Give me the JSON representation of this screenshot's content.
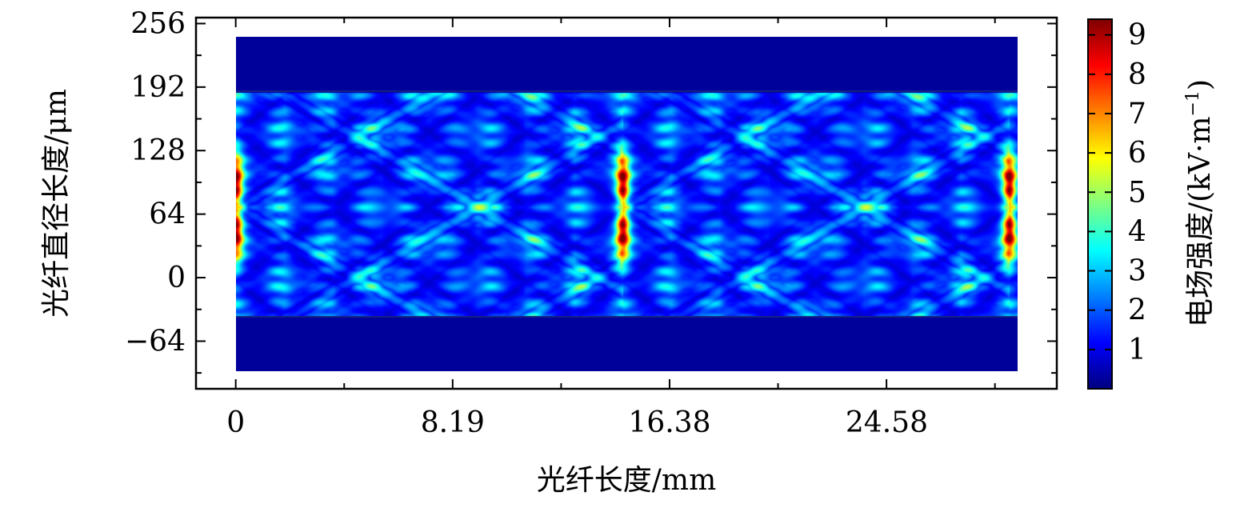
{
  "chart_data": {
    "type": "heatmap",
    "title": "",
    "xlabel": "光纤长度/mm",
    "ylabel": "光纤直径长度/μm",
    "x_ticks": [
      "0",
      "8.19",
      "16.38",
      "24.58"
    ],
    "x_tick_values": [
      0,
      8.19,
      16.38,
      24.58
    ],
    "xlim": [
      -1.5,
      31.0
    ],
    "y_ticks": [
      "−64",
      "0",
      "64",
      "128",
      "192",
      "256"
    ],
    "y_tick_values": [
      -64,
      0,
      64,
      128,
      192,
      256
    ],
    "ylim": [
      -112,
      262
    ],
    "data_extent": {
      "x": [
        0,
        30.1
      ],
      "y": [
        -93,
        250
      ]
    },
    "core_region": {
      "y": [
        -37,
        193
      ]
    },
    "hotspots_x": [
      0,
      14.9,
      29.7
    ],
    "hotspots_y": 75,
    "colorbar": {
      "label": "电场强度/(kV·m",
      "label_sup": "−1",
      "label_close": ")",
      "ticks": [
        "1",
        "2",
        "3",
        "4",
        "5",
        "6",
        "7",
        "8",
        "9"
      ],
      "tick_values": [
        1,
        2,
        3,
        4,
        5,
        6,
        7,
        8,
        9
      ],
      "range": [
        0,
        9.4
      ],
      "colormap": "jet"
    },
    "grid": false
  }
}
